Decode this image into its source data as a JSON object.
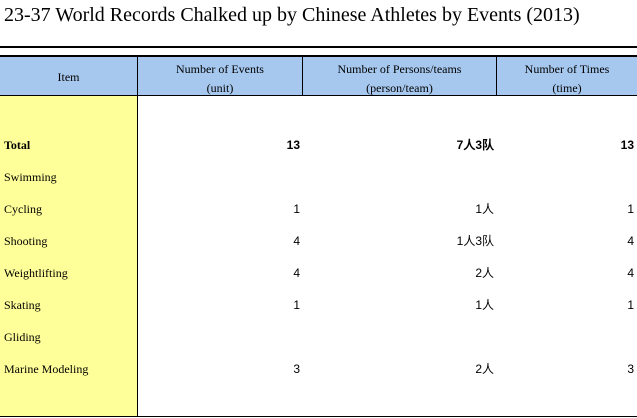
{
  "title": "23-37  World Records Chalked up by Chinese Athletes by Events (2013)",
  "headers": {
    "item": "Item",
    "events_line1": "Number of Events",
    "events_line2": "(unit)",
    "persons_line1": "Number of Persons/teams",
    "persons_line2": "(person/team)",
    "times_line1": "Number of Times",
    "times_line2": "(time)"
  },
  "colors": {
    "header_bg": "#a6c8ef",
    "item_column_bg": "#ffff99"
  },
  "rows": [
    {
      "item": "Total",
      "events": "13",
      "persons": "7人3队",
      "times": "13",
      "bold": true
    },
    {
      "item": "Swimming",
      "events": "",
      "persons": "",
      "times": ""
    },
    {
      "item": "Cycling",
      "events": "1",
      "persons": "1人",
      "times": "1"
    },
    {
      "item": "Shooting",
      "events": "4",
      "persons": "1人3队",
      "times": "4"
    },
    {
      "item": "Weightlifting",
      "events": "4",
      "persons": "2人",
      "times": "4"
    },
    {
      "item": "Skating",
      "events": "1",
      "persons": "1人",
      "times": "1"
    },
    {
      "item": "Gliding",
      "events": "",
      "persons": "",
      "times": ""
    },
    {
      "item": "Marine Modeling",
      "events": "3",
      "persons": "2人",
      "times": "3"
    }
  ]
}
